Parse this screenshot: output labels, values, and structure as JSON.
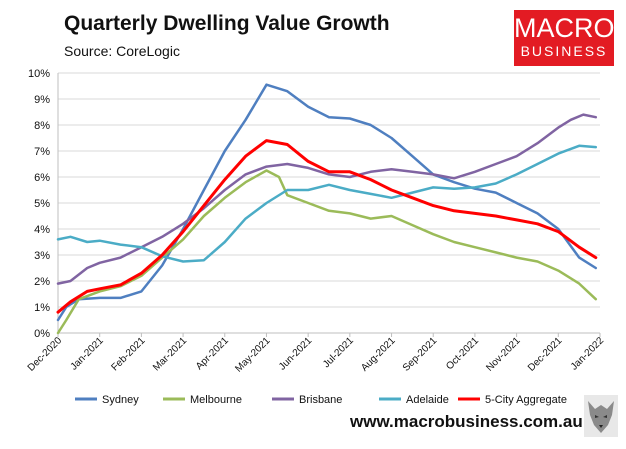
{
  "header": {
    "title": "Quarterly Dwelling Value Growth",
    "source": "Source: CoreLogic"
  },
  "logo": {
    "line1": "MACRO",
    "line2": "BUSINESS"
  },
  "footer": {
    "url": "www.macrobusiness.com.au"
  },
  "colors": {
    "Sydney": "#4f7fc0",
    "Melbourne": "#9bbb59",
    "Brisbane": "#8064a2",
    "Adelaide": "#4bacc6",
    "5-City Aggregate": "#ff0000",
    "grid": "#d9d9d9",
    "axis": "#bfbfbf"
  },
  "chart_data": {
    "type": "line",
    "title": "Quarterly Dwelling Value Growth",
    "xlabel": "",
    "ylabel": "",
    "grid": true,
    "legend": "bottom",
    "x_ticks": [
      "Dec-2020",
      "Jan-2021",
      "Feb-2021",
      "Mar-2021",
      "Apr-2021",
      "May-2021",
      "Jun-2021",
      "Jul-2021",
      "Aug-2021",
      "Sep-2021",
      "Oct-2021",
      "Nov-2021",
      "Dec-2021",
      "Jan-2022"
    ],
    "y_ticks": [
      "0%",
      "1%",
      "2%",
      "3%",
      "4%",
      "5%",
      "6%",
      "7%",
      "8%",
      "9%",
      "10%"
    ],
    "ylim": [
      0,
      10
    ],
    "xlim": [
      0,
      13
    ],
    "series": [
      {
        "name": "Sydney",
        "x": [
          0,
          0.2,
          0.5,
          1,
          1.5,
          2,
          2.5,
          3,
          3.5,
          4,
          4.5,
          5,
          5.5,
          6,
          6.5,
          7,
          7.5,
          8,
          8.5,
          9,
          9.5,
          10,
          10.5,
          11,
          11.5,
          12,
          12.5,
          12.9
        ],
        "values": [
          0.5,
          1.0,
          1.3,
          1.35,
          1.35,
          1.6,
          2.6,
          4.0,
          5.5,
          7.0,
          8.2,
          9.55,
          9.3,
          8.7,
          8.3,
          8.25,
          8.0,
          7.5,
          6.8,
          6.1,
          5.8,
          5.55,
          5.4,
          5.0,
          4.6,
          4.0,
          2.9,
          2.5
        ]
      },
      {
        "name": "Melbourne",
        "x": [
          0,
          0.2,
          0.5,
          1,
          1.5,
          2,
          2.5,
          3,
          3.5,
          4,
          4.5,
          5,
          5.3,
          5.5,
          6,
          6.5,
          7,
          7.5,
          8,
          8.5,
          9,
          9.5,
          10,
          10.5,
          11,
          11.5,
          12,
          12.5,
          12.9
        ],
        "values": [
          0.0,
          0.5,
          1.3,
          1.6,
          1.8,
          2.2,
          2.9,
          3.6,
          4.5,
          5.2,
          5.8,
          6.25,
          6.0,
          5.3,
          5.0,
          4.7,
          4.6,
          4.4,
          4.5,
          4.15,
          3.8,
          3.5,
          3.3,
          3.1,
          2.9,
          2.75,
          2.4,
          1.9,
          1.3
        ]
      },
      {
        "name": "Brisbane",
        "x": [
          0,
          0.3,
          0.7,
          1,
          1.5,
          2,
          2.5,
          3,
          3.5,
          4,
          4.5,
          5,
          5.5,
          6,
          6.5,
          7,
          7.5,
          8,
          8.5,
          9,
          9.5,
          10,
          10.5,
          11,
          11.5,
          12,
          12.3,
          12.6,
          12.9
        ],
        "values": [
          1.9,
          2.0,
          2.5,
          2.7,
          2.9,
          3.3,
          3.7,
          4.2,
          4.8,
          5.5,
          6.1,
          6.4,
          6.5,
          6.35,
          6.1,
          6.0,
          6.2,
          6.3,
          6.2,
          6.1,
          5.95,
          6.2,
          6.5,
          6.8,
          7.3,
          7.9,
          8.2,
          8.4,
          8.3
        ]
      },
      {
        "name": "Adelaide",
        "x": [
          0,
          0.3,
          0.7,
          1,
          1.5,
          2,
          2.5,
          3,
          3.5,
          4,
          4.5,
          5,
          5.5,
          6,
          6.5,
          7,
          7.5,
          8,
          8.5,
          9,
          9.5,
          10,
          10.5,
          11,
          11.5,
          12,
          12.5,
          12.9
        ],
        "values": [
          3.6,
          3.7,
          3.5,
          3.55,
          3.4,
          3.3,
          2.95,
          2.75,
          2.8,
          3.5,
          4.4,
          5.0,
          5.5,
          5.5,
          5.7,
          5.5,
          5.35,
          5.2,
          5.4,
          5.6,
          5.55,
          5.6,
          5.75,
          6.1,
          6.5,
          6.9,
          7.2,
          7.15
        ]
      },
      {
        "name": "5-City Aggregate",
        "x": [
          0,
          0.3,
          0.7,
          1,
          1.5,
          2,
          2.5,
          3,
          3.5,
          4,
          4.5,
          5,
          5.5,
          6,
          6.5,
          7,
          7.5,
          8,
          8.5,
          9,
          9.5,
          10,
          10.5,
          11,
          11.5,
          12,
          12.5,
          12.9
        ],
        "values": [
          0.8,
          1.2,
          1.6,
          1.7,
          1.85,
          2.3,
          3.0,
          3.9,
          4.9,
          5.9,
          6.8,
          7.4,
          7.25,
          6.6,
          6.2,
          6.2,
          5.9,
          5.5,
          5.2,
          4.9,
          4.7,
          4.6,
          4.5,
          4.35,
          4.2,
          3.9,
          3.3,
          2.9
        ]
      }
    ]
  }
}
